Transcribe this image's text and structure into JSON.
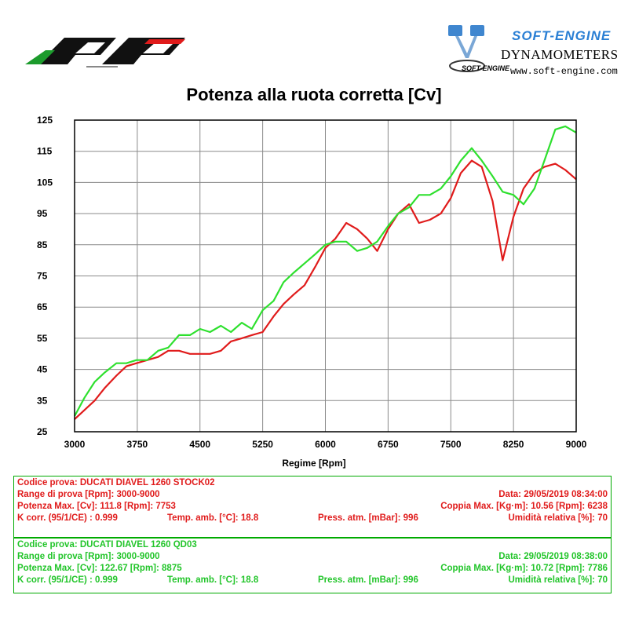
{
  "header": {
    "software_brand": "SOFT-ENGINE",
    "software_product": "DYNAMOMETERS",
    "software_url": "www.soft-engine.com",
    "logo_small_text": "SOFT-ENGINE"
  },
  "colors": {
    "stock": "#e01b1b",
    "qd": "#2ee02e",
    "box_border": "#00aa00",
    "brand_blue": "#2a7fd4"
  },
  "chart_data": {
    "type": "line",
    "title": "Potenza alla ruota corretta [Cv]",
    "xlabel": "Regime [Rpm]",
    "ylabel": "",
    "xlim": [
      3000,
      9000
    ],
    "ylim": [
      25,
      125
    ],
    "xticks": [
      3000,
      3750,
      4500,
      5250,
      6000,
      6750,
      7500,
      8250,
      9000
    ],
    "yticks": [
      25,
      35,
      45,
      55,
      65,
      75,
      85,
      95,
      105,
      115,
      125
    ],
    "grid": true,
    "series": [
      {
        "key": "stock",
        "color": "#e01b1b",
        "x": [
          3000,
          3120,
          3240,
          3360,
          3500,
          3620,
          3740,
          3870,
          4000,
          4120,
          4250,
          4380,
          4500,
          4620,
          4750,
          4870,
          5000,
          5120,
          5250,
          5380,
          5500,
          5620,
          5750,
          5880,
          6000,
          6120,
          6250,
          6380,
          6500,
          6620,
          6750,
          6870,
          7000,
          7120,
          7250,
          7380,
          7500,
          7620,
          7750,
          7870,
          8000,
          8120,
          8250,
          8370,
          8500,
          8620,
          8750,
          8870,
          9000
        ],
        "y": [
          29,
          32,
          35,
          39,
          43,
          46,
          47,
          48,
          49,
          51,
          51,
          50,
          50,
          50,
          51,
          54,
          55,
          56,
          57,
          62,
          66,
          69,
          72,
          78,
          84,
          87,
          92,
          90,
          87,
          83,
          90,
          95,
          98,
          92,
          93,
          95,
          100,
          108,
          112,
          110,
          99,
          80,
          94,
          103,
          108,
          110,
          111,
          109,
          106
        ]
      },
      {
        "key": "qd",
        "color": "#2ee02e",
        "x": [
          3000,
          3120,
          3240,
          3360,
          3500,
          3620,
          3740,
          3870,
          4000,
          4120,
          4250,
          4380,
          4500,
          4620,
          4750,
          4870,
          5000,
          5120,
          5250,
          5380,
          5500,
          5620,
          5750,
          5880,
          6000,
          6120,
          6250,
          6380,
          6500,
          6620,
          6750,
          6870,
          7000,
          7120,
          7250,
          7380,
          7500,
          7620,
          7750,
          7870,
          8000,
          8120,
          8250,
          8370,
          8500,
          8620,
          8750,
          8870,
          9000
        ],
        "y": [
          30,
          36,
          41,
          44,
          47,
          47,
          48,
          48,
          51,
          52,
          56,
          56,
          58,
          57,
          59,
          57,
          60,
          58,
          64,
          67,
          73,
          76,
          79,
          82,
          85,
          86,
          86,
          83,
          84,
          86,
          91,
          95,
          97,
          101,
          101,
          103,
          107,
          112,
          116,
          112,
          107,
          102,
          101,
          98,
          103,
          112,
          122,
          123,
          121
        ]
      }
    ]
  },
  "tests": [
    {
      "key": "stock",
      "codice": "Codice prova: DUCATI DIAVEL 1260 STOCK02",
      "range": "Range di prova [Rpm]: 3000-9000",
      "data": "Data: 29/05/2019   08:34:00",
      "potenza": "Potenza Max. [Cv]: 111.8   [Rpm]: 7753",
      "coppia": "Coppia Max. [Kg·m]: 10.56   [Rpm]: 6238",
      "kcorr": "K corr. (95/1/CE) : 0.999",
      "temp": "Temp. amb. [°C]: 18.8",
      "press": "Press. atm. [mBar]: 996",
      "umid": "Umidità relativa [%]: 70"
    },
    {
      "key": "qd",
      "codice": "Codice prova: DUCATI DIAVEL 1260 QD03",
      "range": "Range di prova [Rpm]: 3000-9000",
      "data": "Data: 29/05/2019   08:38:00",
      "potenza": "Potenza Max. [Cv]: 122.67   [Rpm]: 8875",
      "coppia": "Coppia Max. [Kg·m]: 10.72   [Rpm]: 7786",
      "kcorr": "K corr. (95/1/CE) : 0.999",
      "temp": "Temp. amb. [°C]: 18.8",
      "press": "Press. atm. [mBar]: 996",
      "umid": "Umidità relativa [%]: 70"
    }
  ]
}
